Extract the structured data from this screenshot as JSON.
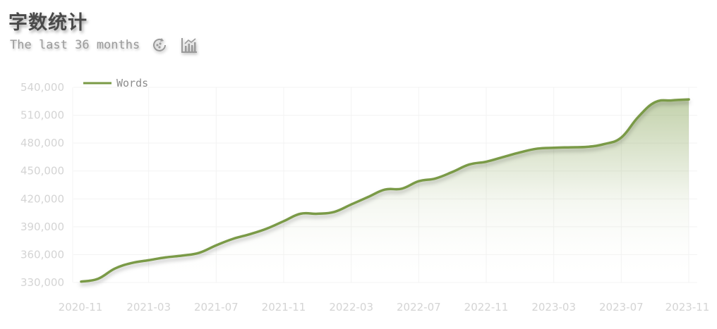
{
  "header": {
    "title": "字数统计",
    "subtitle": "The last 36 months"
  },
  "toolbar": {
    "icons": [
      "restore-icon",
      "chart-type-icon"
    ]
  },
  "colors": {
    "line": "#7a9a46",
    "title": "#4a4a4a",
    "subtitle": "#9a9a9a",
    "ticks": "#d4d4d4",
    "grid": "#f3f3f3"
  },
  "chart_data": {
    "type": "area",
    "legend": {
      "entries": [
        "Words"
      ],
      "placement": "top-left"
    },
    "grid": true,
    "ylim": [
      330000,
      540000
    ],
    "yticks": [
      "330,000",
      "360,000",
      "390,000",
      "420,000",
      "450,000",
      "480,000",
      "510,000",
      "540,000"
    ],
    "yticks_values": [
      330000,
      360000,
      390000,
      420000,
      450000,
      480000,
      510000,
      540000
    ],
    "xtick_labels": [
      "2020-11",
      "2021-03",
      "2021-07",
      "2021-11",
      "2022-03",
      "2022-07",
      "2022-11",
      "2023-03",
      "2023-07",
      "2023-11"
    ],
    "x": [
      "2020-11",
      "2020-12",
      "2021-01",
      "2021-02",
      "2021-03",
      "2021-04",
      "2021-05",
      "2021-06",
      "2021-07",
      "2021-08",
      "2021-09",
      "2021-10",
      "2021-11",
      "2021-12",
      "2022-01",
      "2022-02",
      "2022-03",
      "2022-04",
      "2022-05",
      "2022-06",
      "2022-07",
      "2022-08",
      "2022-09",
      "2022-10",
      "2022-11",
      "2022-12",
      "2023-01",
      "2023-02",
      "2023-03",
      "2023-04",
      "2023-05",
      "2023-06",
      "2023-07",
      "2023-08",
      "2023-09",
      "2023-10",
      "2023-11"
    ],
    "series": [
      {
        "name": "Words",
        "values": [
          331000,
          334000,
          345000,
          351000,
          354000,
          357000,
          359000,
          362000,
          370000,
          377000,
          382000,
          388000,
          396000,
          404000,
          404000,
          406000,
          414000,
          422000,
          430000,
          431000,
          439000,
          442000,
          449000,
          457000,
          460000,
          465000,
          470000,
          474000,
          475000,
          475500,
          476000,
          479000,
          486000,
          508000,
          524000,
          526000,
          527000
        ]
      }
    ]
  }
}
